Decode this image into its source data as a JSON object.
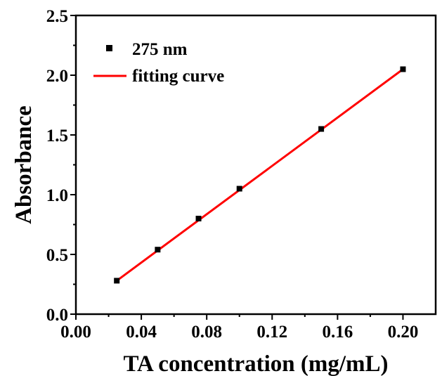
{
  "chart_data": {
    "type": "scatter",
    "xlabel": "TA concentration (mg/mL)",
    "ylabel": "Absorbance",
    "xlim": [
      0.0,
      0.22
    ],
    "ylim": [
      0.0,
      2.5
    ],
    "xticks": [
      "0.00",
      "0.04",
      "0.08",
      "0.12",
      "0.16",
      "0.20"
    ],
    "yticks": [
      "0.0",
      "0.5",
      "1.0",
      "1.5",
      "2.0",
      "2.5"
    ],
    "series": [
      {
        "name": "275 nm",
        "kind": "scatter",
        "marker": "square",
        "color": "#000000",
        "x": [
          0.025,
          0.05,
          0.075,
          0.1,
          0.15,
          0.2
        ],
        "y": [
          0.28,
          0.54,
          0.8,
          1.05,
          1.55,
          2.05
        ]
      },
      {
        "name": "fitting curve",
        "kind": "line",
        "color": "#ff0000",
        "x": [
          0.025,
          0.2
        ],
        "y": [
          0.28,
          2.05
        ]
      }
    ],
    "legend_position": "top-left",
    "grid": false
  }
}
